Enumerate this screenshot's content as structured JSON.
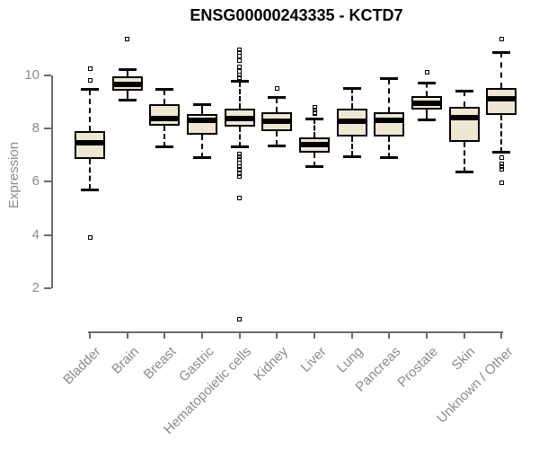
{
  "chart_data": {
    "type": "boxplot",
    "title": "ENSG00000243335 - KCTD7",
    "ylabel": "Expression",
    "xlabel": "",
    "yticks": [
      2,
      4,
      6,
      8,
      10
    ],
    "ylim": [
      0.5,
      11.6
    ],
    "grid": false,
    "legend": "none",
    "categories": [
      "Bladder",
      "Brain",
      "Breast",
      "Gastric",
      "Hematopoietic cells",
      "Kidney",
      "Liver",
      "Lung",
      "Pancreas",
      "Prostate",
      "Skin",
      "Unknown / Other"
    ],
    "boxes": [
      {
        "label": "Bladder",
        "low": 5.7,
        "q1": 6.85,
        "median": 7.45,
        "q3": 7.9,
        "high": 9.45,
        "outliers": [
          10.25,
          9.8,
          3.9
        ]
      },
      {
        "label": "Brain",
        "low": 9.05,
        "q1": 9.4,
        "median": 9.65,
        "q3": 9.95,
        "high": 10.2,
        "outliers": [
          11.35
        ]
      },
      {
        "label": "Breast",
        "low": 7.3,
        "q1": 8.1,
        "median": 8.35,
        "q3": 8.9,
        "high": 9.45,
        "outliers": []
      },
      {
        "label": "Gastric",
        "low": 6.9,
        "q1": 7.75,
        "median": 8.3,
        "q3": 8.55,
        "high": 8.9,
        "outliers": []
      },
      {
        "label": "Hematopoietic cells",
        "low": 7.3,
        "q1": 8.05,
        "median": 8.35,
        "q3": 8.75,
        "high": 9.75,
        "outliers": [
          10.95,
          10.85,
          10.7,
          10.55,
          10.3,
          10.15,
          10.0,
          9.9,
          7.05,
          6.95,
          6.85,
          6.7,
          6.55,
          6.45,
          6.3,
          6.2,
          5.4,
          0.85
        ]
      },
      {
        "label": "Kidney",
        "low": 7.35,
        "q1": 7.9,
        "median": 8.25,
        "q3": 8.6,
        "high": 9.15,
        "outliers": [
          9.5
        ]
      },
      {
        "label": "Liver",
        "low": 6.55,
        "q1": 7.1,
        "median": 7.4,
        "q3": 7.65,
        "high": 8.35,
        "outliers": [
          8.8,
          8.7,
          8.6,
          8.55
        ]
      },
      {
        "label": "Lung",
        "low": 6.95,
        "q1": 7.7,
        "median": 8.25,
        "q3": 8.75,
        "high": 9.5,
        "outliers": []
      },
      {
        "label": "Pancreas",
        "low": 6.9,
        "q1": 7.7,
        "median": 8.3,
        "q3": 8.6,
        "high": 9.85,
        "outliers": []
      },
      {
        "label": "Prostate",
        "low": 8.3,
        "q1": 8.7,
        "median": 8.95,
        "q3": 9.2,
        "high": 9.7,
        "outliers": [
          10.1
        ]
      },
      {
        "label": "Skin",
        "low": 6.35,
        "q1": 7.5,
        "median": 8.4,
        "q3": 8.8,
        "high": 9.4,
        "outliers": []
      },
      {
        "label": "Unknown / Other",
        "low": 7.1,
        "q1": 8.5,
        "median": 9.1,
        "q3": 9.5,
        "high": 10.85,
        "outliers": [
          11.35,
          6.9,
          6.65,
          6.55,
          6.45,
          5.95
        ]
      }
    ],
    "colors": {
      "box_fill": "#EEE8D2",
      "box_border": "#000000",
      "median": "#000000",
      "whisker": "#000000",
      "axis": "#6B6B6B",
      "tick_label": "#8B8B8B",
      "title": "#000000",
      "background": "#FFFFFF"
    }
  }
}
